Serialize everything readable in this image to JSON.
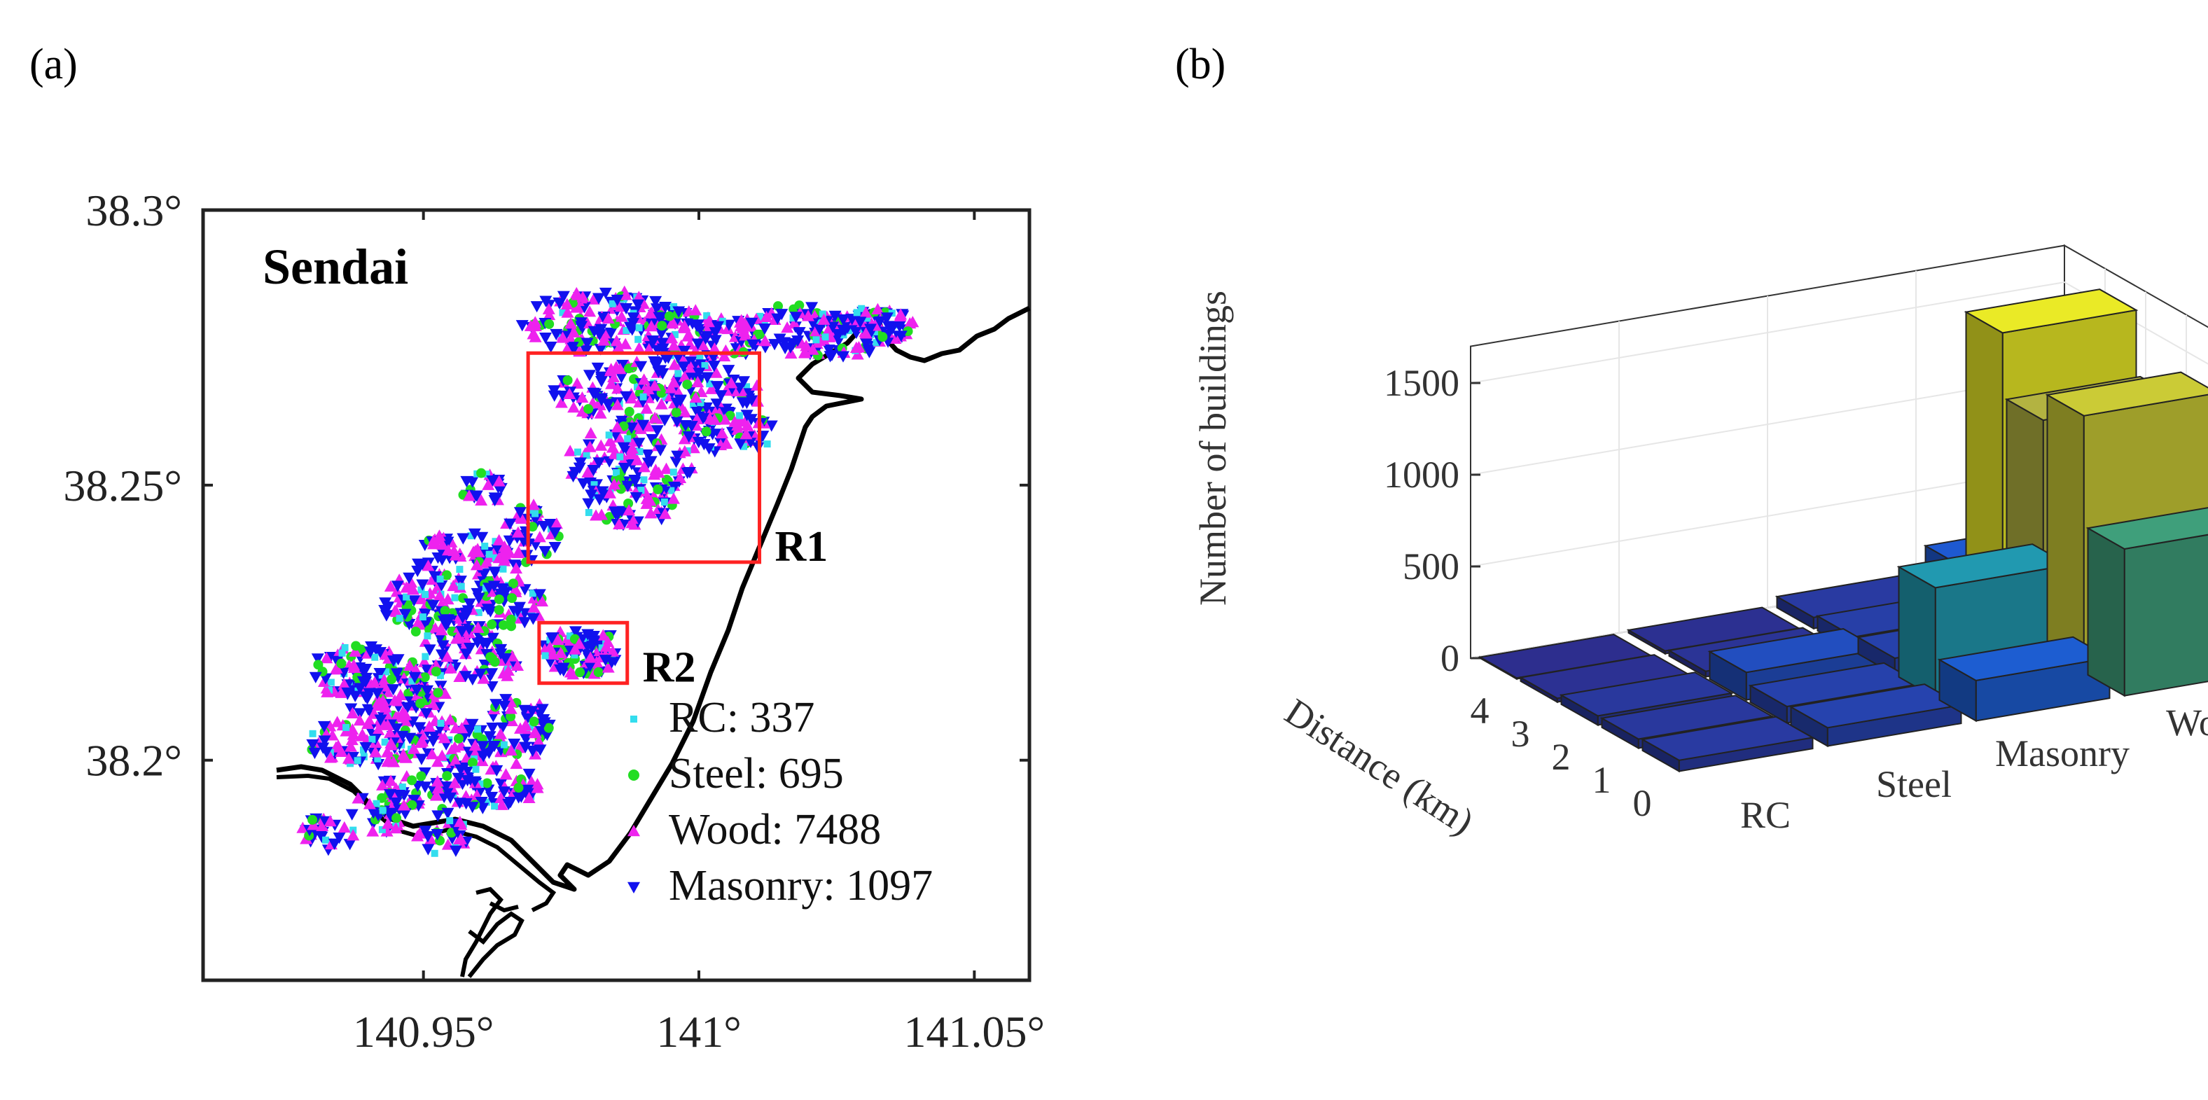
{
  "panel_a_label": "(a)",
  "panel_b_label": "(b)",
  "colors": {
    "rc": "#33ddee",
    "steel": "#22dd22",
    "wood": "#ee22ee",
    "masonry": "#1111ee",
    "box": "#ff2222",
    "grid": "#e6e6e6"
  },
  "chart_data": [
    {
      "type": "scatter",
      "title": "Sendai",
      "xlim": [
        140.91,
        141.06
      ],
      "ylim": [
        38.16,
        38.3
      ],
      "x_ticks": [
        "140.95°",
        "141°",
        "141.05°"
      ],
      "y_ticks": [
        "38.3°",
        "38.25°",
        "38.2°"
      ],
      "regions": [
        {
          "name": "R1",
          "lon": [
            140.969,
            141.011
          ],
          "lat": [
            38.236,
            38.274
          ]
        },
        {
          "name": "R2",
          "lon": [
            140.971,
            140.987
          ],
          "lat": [
            38.214,
            38.225
          ]
        }
      ],
      "legend": [
        {
          "key": "rc",
          "label": "RC: 337",
          "marker": "square"
        },
        {
          "key": "steel",
          "label": "Steel: 695",
          "marker": "circle"
        },
        {
          "key": "wood",
          "label": "Wood: 7488",
          "marker": "triangle-up"
        },
        {
          "key": "masonry",
          "label": "Masonry: 1097",
          "marker": "triangle-down"
        }
      ],
      "series": [
        {
          "name": "RC",
          "count": 337
        },
        {
          "name": "Steel",
          "count": 695
        },
        {
          "name": "Wood",
          "count": 7488
        },
        {
          "name": "Masonry",
          "count": 1097
        }
      ]
    },
    {
      "type": "bar3d",
      "zlabel": "Number of buildings",
      "ylabel": "Distance (km)",
      "zlim": [
        0,
        1700
      ],
      "z_ticks": [
        "0",
        "500",
        "1000",
        "1500"
      ],
      "distance_ticks": [
        "0",
        "1",
        "2",
        "3",
        "4"
      ],
      "categories": [
        "RC",
        "Steel",
        "Masonry",
        "Wood"
      ],
      "series": [
        {
          "distance_km": 0,
          "values": [
            60,
            100,
            220,
            800
          ]
        },
        {
          "distance_km": 1,
          "values": [
            50,
            90,
            600,
            1400
          ]
        },
        {
          "distance_km": 2,
          "values": [
            50,
            150,
            90,
            1250
          ]
        },
        {
          "distance_km": 3,
          "values": [
            20,
            30,
            80,
            1600
          ]
        },
        {
          "distance_km": 4,
          "values": [
            5,
            15,
            60,
            200
          ]
        }
      ]
    }
  ]
}
